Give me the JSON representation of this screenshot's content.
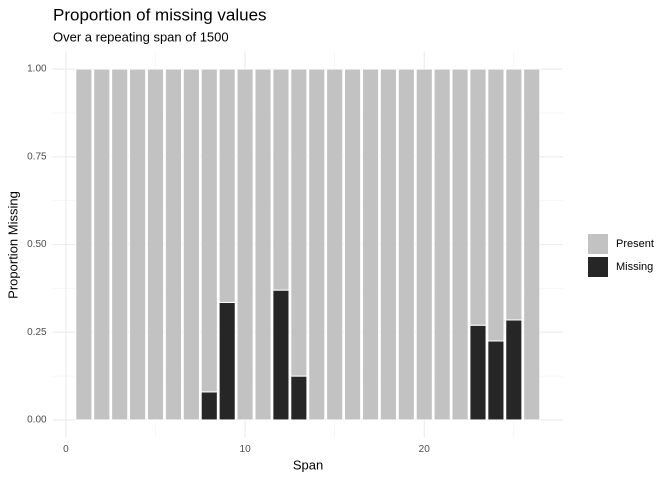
{
  "chart_data": {
    "type": "stacked_bar",
    "title": "Proportion of missing values",
    "subtitle": "Over a repeating span of 1500",
    "x_label": "Span",
    "y_label": "Proportion Missing",
    "x": [
      1,
      2,
      3,
      4,
      5,
      6,
      7,
      8,
      9,
      10,
      11,
      12,
      13,
      14,
      15,
      16,
      17,
      18,
      19,
      20,
      21,
      22,
      23,
      24,
      25,
      26
    ],
    "series": [
      {
        "name": "Present",
        "color": "#c2c2c2",
        "values": [
          1,
          1,
          1,
          1,
          1,
          1,
          1,
          0.92,
          0.665,
          1,
          1,
          0.63,
          0.875,
          1,
          1,
          1,
          1,
          1,
          1,
          1,
          1,
          1,
          0.73,
          0.775,
          0.715,
          1
        ]
      },
      {
        "name": "Missing",
        "color": "#262626",
        "values": [
          0,
          0,
          0,
          0,
          0,
          0,
          0,
          0.08,
          0.335,
          0,
          0,
          0.37,
          0.125,
          0,
          0,
          0,
          0,
          0,
          0,
          0,
          0,
          0,
          0.27,
          0.225,
          0.285,
          0
        ]
      }
    ],
    "xlim": [
      -0.745,
      27.745
    ],
    "xticks": [
      0,
      10,
      20
    ],
    "ylim": [
      -0.05,
      1.05
    ],
    "yticks": [
      {
        "value": 0,
        "label": "0.00"
      },
      {
        "value": 0.25,
        "label": "0.25"
      },
      {
        "value": 0.5,
        "label": "0.50"
      },
      {
        "value": 0.75,
        "label": "0.75"
      },
      {
        "value": 1,
        "label": "1.00"
      }
    ],
    "grid": true,
    "legend": "right"
  }
}
